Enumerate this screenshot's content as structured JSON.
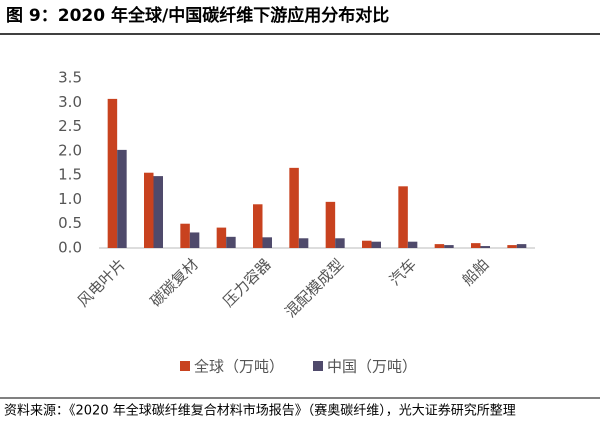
{
  "chart_data": {
    "type": "bar",
    "title": "图 9：2020 年全球/中国碳纤维下游应用分布对比",
    "source": "资料来源：《2020 年全球碳纤维复合材料市场报告》（赛奥碳纤维），光大证券研究所整理",
    "categories": [
      "风电叶片",
      null,
      "碳碳复材",
      null,
      "压力容器",
      null,
      "混配模成型",
      null,
      "汽车",
      null,
      "船舶",
      null
    ],
    "series": [
      {
        "name": "全球（万吨）",
        "color": "#c8421f",
        "values": [
          3.07,
          1.55,
          0.5,
          0.42,
          0.9,
          1.65,
          0.95,
          0.15,
          1.27,
          0.08,
          0.1,
          0.06
        ]
      },
      {
        "name": "中国（万吨）",
        "color": "#4f4a6b",
        "values": [
          2.02,
          1.48,
          0.32,
          0.23,
          0.22,
          0.2,
          0.2,
          0.13,
          0.13,
          0.06,
          0.04,
          0.08
        ]
      }
    ],
    "ylim": [
      0,
      3.5
    ],
    "yticks": [
      {
        "value": 0,
        "label": "0.0"
      },
      0.5,
      {
        "value": 1,
        "label": "1.0"
      },
      1.5,
      {
        "value": 2,
        "label": "2.0"
      },
      2.5,
      {
        "value": 3,
        "label": "3.0"
      },
      3.5
    ],
    "grid": false,
    "legend": "bottom"
  }
}
